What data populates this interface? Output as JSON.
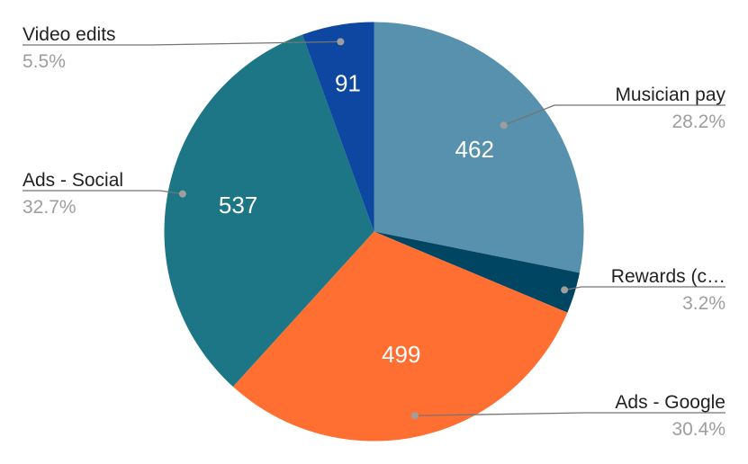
{
  "chart_data": {
    "type": "pie",
    "title": "",
    "slices": [
      {
        "label": "Musician pay",
        "value": 462,
        "percent_label": "28.2%",
        "color": "#5891ad"
      },
      {
        "label": "Rewards (c…",
        "value": 52,
        "percent_label": "3.2%",
        "color": "#004561"
      },
      {
        "label": "Ads - Google",
        "value": 499,
        "percent_label": "30.4%",
        "color": "#ff6f31"
      },
      {
        "label": "Ads - Social",
        "value": 537,
        "percent_label": "32.7%",
        "color": "#1c7685"
      },
      {
        "label": "Video edits",
        "value": 91,
        "percent_label": "5.5%",
        "color": "#0d47a1"
      }
    ],
    "show_value_in_slice": [
      true,
      false,
      true,
      true,
      true
    ],
    "start_angle_deg": 0,
    "direction": "clockwise"
  }
}
